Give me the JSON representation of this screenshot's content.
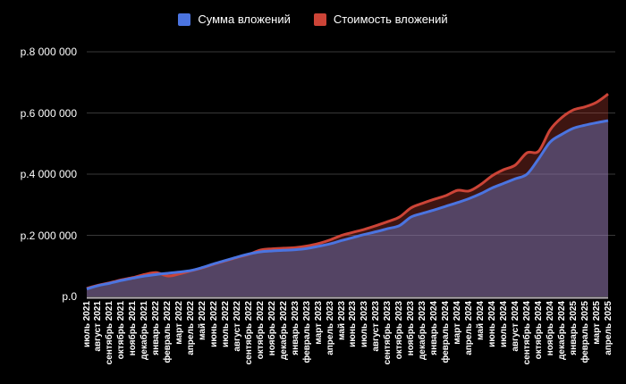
{
  "chart_data": {
    "type": "area",
    "title": "",
    "background": "#000000",
    "text_color": "#ffffff",
    "grid": true,
    "grid_color": "rgba(255,255,255,0.22)",
    "axis_line_color": "#b9b1b9",
    "legend_position": "top",
    "ylim": [
      0,
      8000000
    ],
    "y_ticks": [
      {
        "label": "р.0",
        "value": 0
      },
      {
        "label": "р.2 000 000",
        "value": 2000000
      },
      {
        "label": "р.4 000 000",
        "value": 4000000
      },
      {
        "label": "р.6 000 000",
        "value": 6000000
      },
      {
        "label": "р.8 000 000",
        "value": 8000000
      }
    ],
    "categories": [
      "июль 2021",
      "август 2021",
      "сентябрь 2021",
      "октябрь 2021",
      "ноябрь 2021",
      "декабрь 2021",
      "январь 2022",
      "февраль 2022",
      "март 2022",
      "апрель 2022",
      "май 2022",
      "июнь 2022",
      "июль 2022",
      "август 2022",
      "сентябрь 2022",
      "октябрь 2022",
      "ноябрь 2022",
      "декабрь 2022",
      "январь 2023",
      "февраль 2023",
      "март 2023",
      "апрель 2023",
      "май 2023",
      "июнь 2023",
      "июль 2023",
      "август 2023",
      "сентябрь 2023",
      "октябрь 2023",
      "ноябрь 2023",
      "декабрь 2023",
      "январь 2024",
      "февраль 2024",
      "март 2024",
      "апрель 2024",
      "май 2024",
      "июнь 2024",
      "июль 2024",
      "август 2024",
      "сентябрь 2024",
      "октябрь 2024",
      "ноябрь 2024",
      "декабрь 2024",
      "январь 2025",
      "февраль 2025",
      "март 2025",
      "апрель 2025"
    ],
    "series": [
      {
        "name": "Сумма вложений",
        "line_color": "#4b74e0",
        "fill_color": "rgba(118,140,225,0.40)",
        "values": [
          245000,
          355000,
          435000,
          525000,
          600000,
          670000,
          720000,
          760000,
          800000,
          850000,
          950000,
          1070000,
          1180000,
          1290000,
          1390000,
          1460000,
          1490000,
          1510000,
          1530000,
          1570000,
          1640000,
          1720000,
          1830000,
          1930000,
          2030000,
          2120000,
          2220000,
          2320000,
          2600000,
          2720000,
          2830000,
          2950000,
          3070000,
          3200000,
          3360000,
          3550000,
          3700000,
          3850000,
          4000000,
          4500000,
          5050000,
          5300000,
          5500000,
          5600000,
          5680000,
          5750000
        ]
      },
      {
        "name": "Стоимость вложений",
        "line_color": "#cc4437",
        "fill_color": "rgba(204,68,55,0.30)",
        "values": [
          265000,
          370000,
          450000,
          545000,
          620000,
          720000,
          780000,
          670000,
          740000,
          840000,
          940000,
          1060000,
          1170000,
          1280000,
          1380000,
          1520000,
          1560000,
          1580000,
          1600000,
          1650000,
          1730000,
          1850000,
          2000000,
          2100000,
          2200000,
          2320000,
          2450000,
          2600000,
          2900000,
          3050000,
          3180000,
          3300000,
          3470000,
          3450000,
          3660000,
          3950000,
          4150000,
          4300000,
          4700000,
          4750000,
          5450000,
          5850000,
          6100000,
          6200000,
          6350000,
          6620000
        ]
      }
    ]
  }
}
